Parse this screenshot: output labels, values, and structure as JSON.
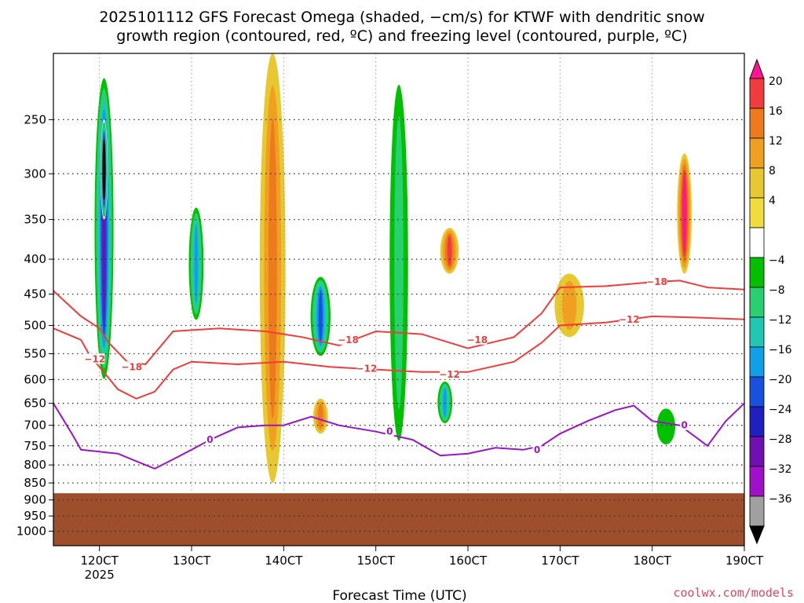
{
  "title": {
    "line1": "2025101112 GFS Forecast Omega (shaded, −cm/s) for KTWF with dendritic snow",
    "line2": "growth region (contoured, red, ºC) and freezing level (contoured, purple, ºC)"
  },
  "credit": "coolwx.com/models",
  "colors": {
    "terrain": "#9c4f2a",
    "dgz_contour": "#f03c3c",
    "freezing_contour": "#9a14c8",
    "grid": "#333333"
  },
  "chart_data": {
    "type": "heatmap",
    "xlabel": "Forecast Time (UTC)",
    "ylabel": "",
    "x_ticks": [
      "120CT",
      "130CT",
      "140CT",
      "150CT",
      "160CT",
      "170CT",
      "180CT",
      "190CT"
    ],
    "x_tick_hours": [
      120,
      130,
      140,
      150,
      160,
      170,
      180,
      190
    ],
    "x_sub_label": "2025",
    "xlim": [
      115,
      190
    ],
    "y_ticks": [
      250,
      300,
      350,
      400,
      450,
      500,
      550,
      600,
      650,
      700,
      750,
      800,
      850,
      900,
      950,
      1000
    ],
    "ylim_hpa": [
      200,
      1050
    ],
    "y_scale": "log-pressure",
    "surface_pressure_hpa": 880,
    "grid": true,
    "colorbar": {
      "labels": [
        "20",
        "16",
        "12",
        "8",
        "4",
        "−4",
        "−8",
        "−12",
        "−16",
        "−20",
        "−24",
        "−28",
        "−32",
        "−36"
      ],
      "colors": [
        "#ff1493",
        "#f03c3c",
        "#ee7a1e",
        "#f0a020",
        "#e8c830",
        "#f0dc3c",
        "#ffffff",
        "#00c000",
        "#28d070",
        "#20c8b4",
        "#10a0e8",
        "#1a50e0",
        "#2020c0",
        "#7010b0",
        "#a010c8",
        "#a0a0a0",
        "#000000"
      ]
    },
    "omega_features": [
      {
        "hour": 120.5,
        "p_top": 210,
        "p_bot": 620,
        "value": -28,
        "width_h": 1.2
      },
      {
        "hour": 120.5,
        "p_top": 250,
        "p_bot": 350,
        "value": -36,
        "width_h": 0.4
      },
      {
        "hour": 130.5,
        "p_top": 330,
        "p_bot": 500,
        "value": -20,
        "width_h": 1.0
      },
      {
        "hour": 138.8,
        "p_top": 200,
        "p_bot": 850,
        "value": 12,
        "width_h": 1.4
      },
      {
        "hour": 144.0,
        "p_top": 420,
        "p_bot": 560,
        "value": -24,
        "width_h": 1.3
      },
      {
        "hour": 144.0,
        "p_top": 640,
        "p_bot": 720,
        "value": 12,
        "width_h": 0.8
      },
      {
        "hour": 152.5,
        "p_top": 200,
        "p_bot": 820,
        "value": -12,
        "width_h": 1.5
      },
      {
        "hour": 158.0,
        "p_top": 360,
        "p_bot": 420,
        "value": 16,
        "width_h": 1.0
      },
      {
        "hour": 157.5,
        "p_top": 600,
        "p_bot": 700,
        "value": -20,
        "width_h": 1.0
      },
      {
        "hour": 183.5,
        "p_top": 280,
        "p_bot": 420,
        "value": 20,
        "width_h": 0.8
      },
      {
        "hour": 171.0,
        "p_top": 420,
        "p_bot": 520,
        "value": 8,
        "width_h": 1.6
      },
      {
        "hour": 181.5,
        "p_top": 650,
        "p_bot": 760,
        "value": -8,
        "width_h": 2.0
      }
    ],
    "dgz_contours": [
      {
        "label": "−18",
        "points": [
          [
            115,
            445
          ],
          [
            118,
            485
          ],
          [
            120,
            505
          ],
          [
            121,
            530
          ],
          [
            123,
            565
          ],
          [
            125,
            570
          ],
          [
            128,
            510
          ],
          [
            133,
            505
          ],
          [
            138,
            510
          ],
          [
            142,
            520
          ],
          [
            146,
            535
          ],
          [
            150,
            510
          ],
          [
            155,
            515
          ],
          [
            160,
            540
          ],
          [
            165,
            520
          ],
          [
            168,
            480
          ],
          [
            170,
            440
          ],
          [
            175,
            438
          ],
          [
            180,
            432
          ],
          [
            183,
            430
          ],
          [
            186,
            440
          ],
          [
            190,
            443
          ]
        ]
      },
      {
        "label": "−12",
        "points": [
          [
            115,
            505
          ],
          [
            118,
            525
          ],
          [
            119,
            555
          ],
          [
            120,
            575
          ],
          [
            122,
            620
          ],
          [
            124,
            640
          ],
          [
            126,
            625
          ],
          [
            128,
            580
          ],
          [
            130,
            565
          ],
          [
            135,
            570
          ],
          [
            140,
            565
          ],
          [
            145,
            575
          ],
          [
            150,
            580
          ],
          [
            155,
            585
          ],
          [
            160,
            585
          ],
          [
            165,
            565
          ],
          [
            168,
            530
          ],
          [
            170,
            500
          ],
          [
            175,
            495
          ],
          [
            180,
            485
          ],
          [
            185,
            487
          ],
          [
            190,
            490
          ]
        ]
      }
    ],
    "freezing_contours": [
      {
        "label": "0",
        "points": [
          [
            115,
            650
          ],
          [
            117,
            720
          ],
          [
            118,
            760
          ],
          [
            120,
            765
          ],
          [
            122,
            770
          ],
          [
            124,
            790
          ],
          [
            126,
            810
          ],
          [
            128,
            785
          ],
          [
            130,
            760
          ],
          [
            132,
            735
          ],
          [
            135,
            705
          ],
          [
            138,
            700
          ],
          [
            140,
            700
          ],
          [
            143,
            680
          ],
          [
            146,
            700
          ],
          [
            150,
            715
          ],
          [
            154,
            735
          ],
          [
            157,
            775
          ],
          [
            160,
            770
          ],
          [
            163,
            755
          ],
          [
            166,
            760
          ],
          [
            168,
            750
          ],
          [
            170,
            720
          ],
          [
            173,
            690
          ],
          [
            176,
            665
          ],
          [
            178,
            655
          ],
          [
            180,
            690
          ],
          [
            183,
            700
          ],
          [
            186,
            750
          ],
          [
            188,
            690
          ],
          [
            190,
            650
          ]
        ]
      }
    ],
    "contour_label_positions": [
      {
        "series": "dgz",
        "label": "−12",
        "at": [
          119.5,
          560
        ]
      },
      {
        "series": "dgz",
        "label": "−18",
        "at": [
          123.5,
          575
        ]
      },
      {
        "series": "dgz",
        "label": "−18",
        "at": [
          147.0,
          525
        ]
      },
      {
        "series": "dgz",
        "label": "−12",
        "at": [
          149.0,
          578
        ]
      },
      {
        "series": "dgz",
        "label": "−18",
        "at": [
          161.0,
          525
        ]
      },
      {
        "series": "dgz",
        "label": "−12",
        "at": [
          158.0,
          590
        ]
      },
      {
        "series": "dgz",
        "label": "−18",
        "at": [
          180.5,
          432
        ]
      },
      {
        "series": "dgz",
        "label": "−12",
        "at": [
          177.5,
          490
        ]
      },
      {
        "series": "fz",
        "label": "0",
        "at": [
          132.0,
          735
        ]
      },
      {
        "series": "fz",
        "label": "0",
        "at": [
          151.5,
          715
        ]
      },
      {
        "series": "fz",
        "label": "0",
        "at": [
          167.5,
          760
        ]
      },
      {
        "series": "fz",
        "label": "0",
        "at": [
          183.5,
          700
        ]
      }
    ]
  }
}
